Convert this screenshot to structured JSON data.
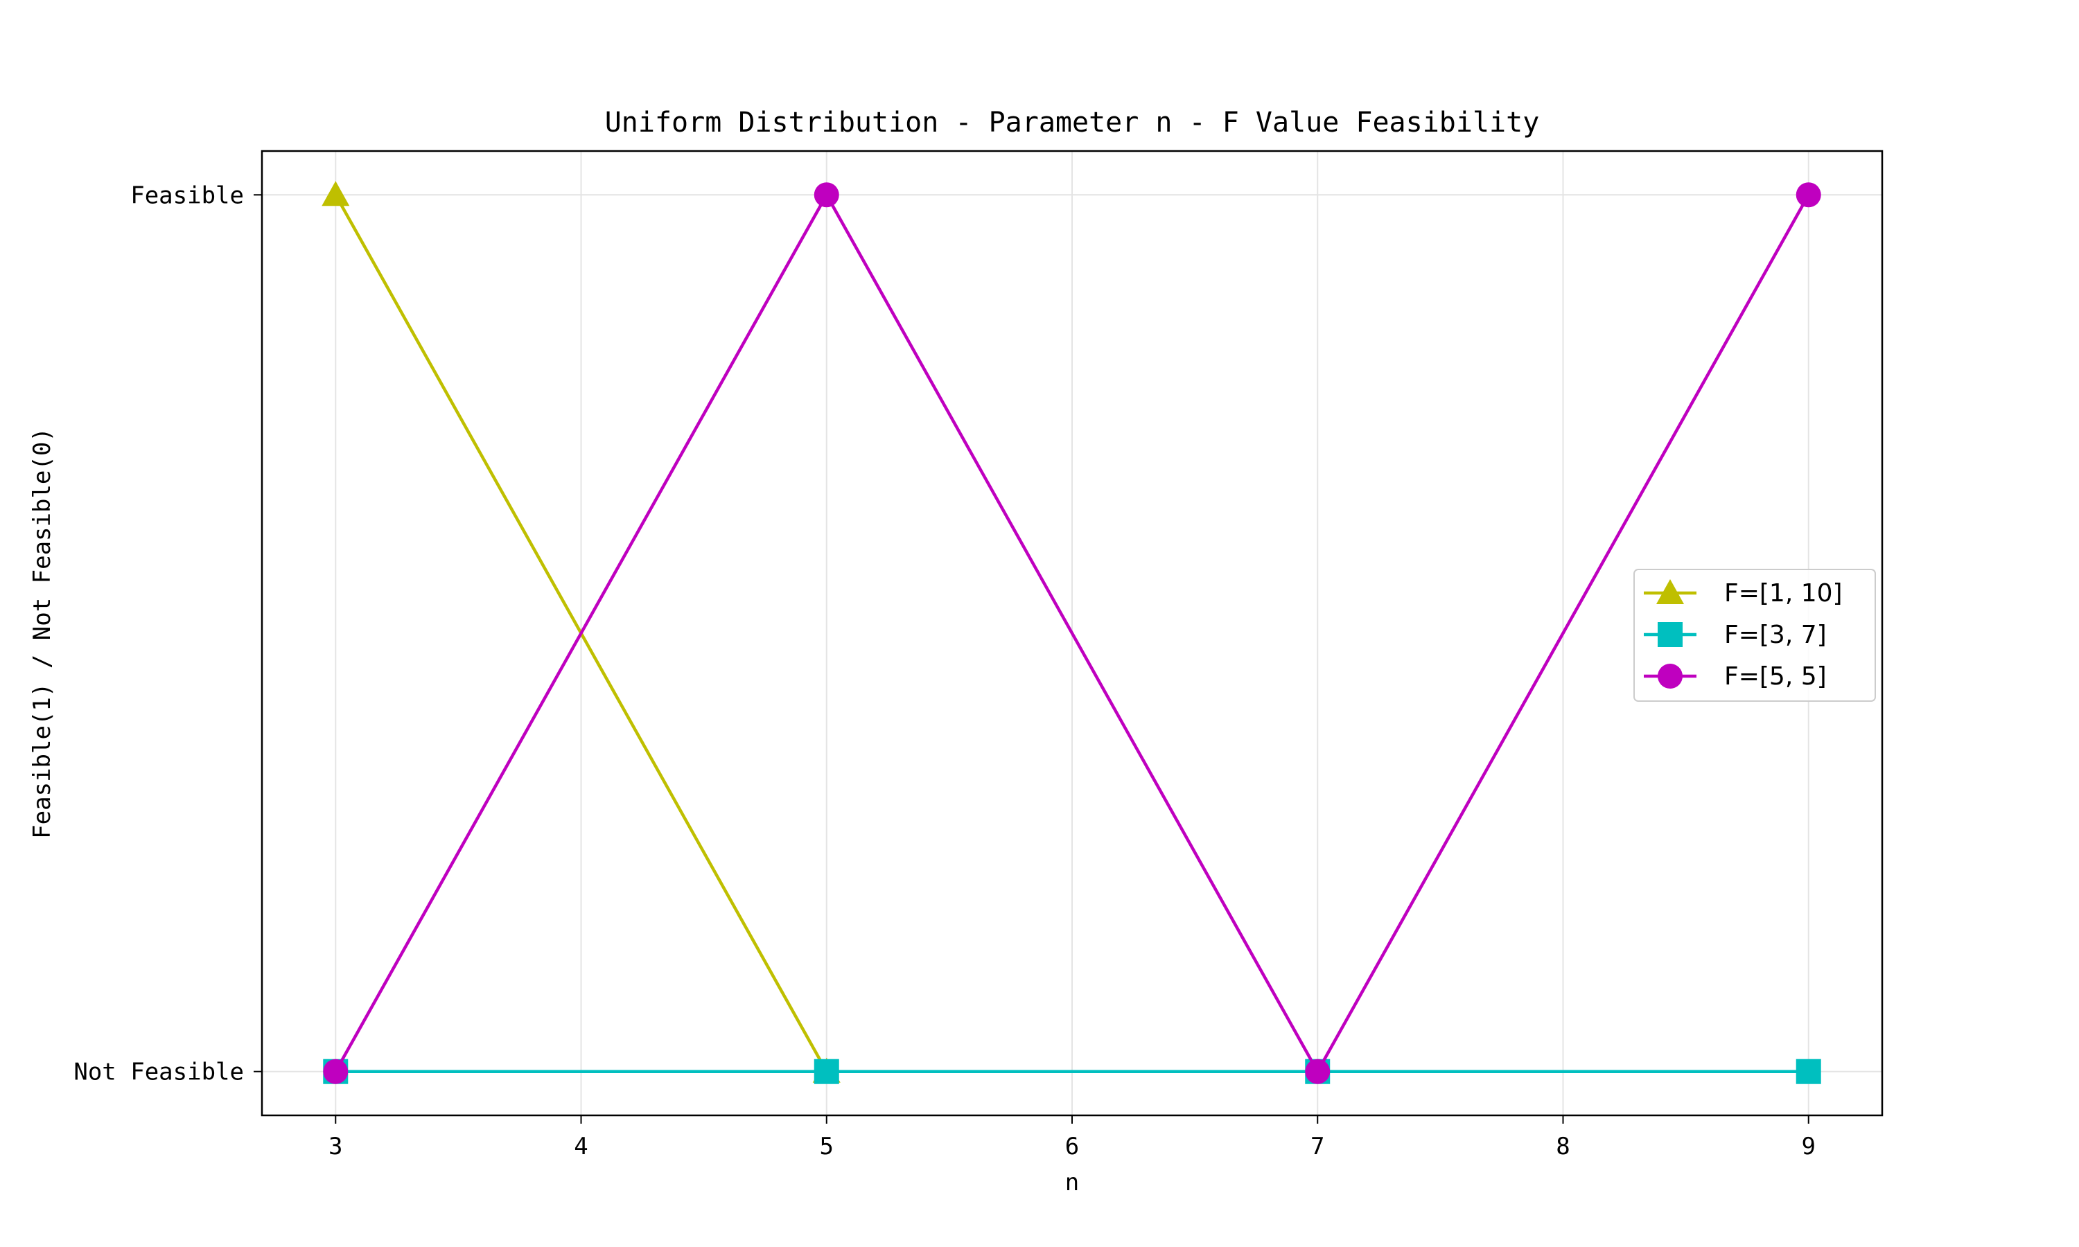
{
  "chart_data": {
    "type": "line",
    "title": "Uniform Distribution - Parameter n - F Value Feasibility",
    "xlabel": "n",
    "ylabel": "Feasible(1) / Not Feasible(0)",
    "x_ticks": [
      3,
      4,
      5,
      6,
      7,
      8,
      9
    ],
    "y_ticks": [
      {
        "value": 0,
        "label": "Not Feasible"
      },
      {
        "value": 1,
        "label": "Feasible"
      }
    ],
    "xlim": [
      2.7,
      9.3
    ],
    "ylim": [
      -0.05,
      1.05
    ],
    "grid": true,
    "legend_position": "center-right",
    "series": [
      {
        "name": "F=[1, 10]",
        "color": "#bfbf00",
        "marker": "triangle",
        "x": [
          3,
          5
        ],
        "y": [
          1,
          0
        ]
      },
      {
        "name": "F=[3, 7]",
        "color": "#00bfbf",
        "marker": "square",
        "x": [
          3,
          5,
          7,
          9
        ],
        "y": [
          0,
          0,
          0,
          0
        ]
      },
      {
        "name": "F=[5, 5]",
        "color": "#bf00bf",
        "marker": "circle",
        "x": [
          3,
          5,
          7,
          9
        ],
        "y": [
          0,
          1,
          0,
          1
        ]
      }
    ]
  }
}
